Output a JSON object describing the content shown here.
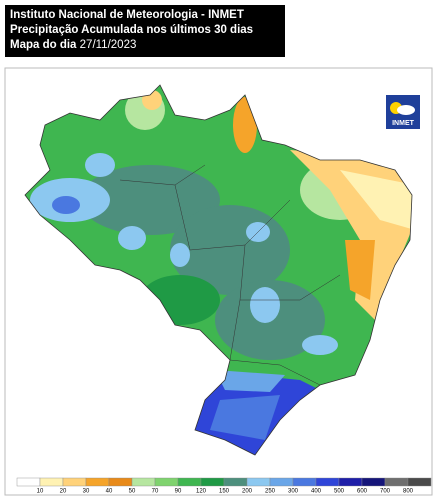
{
  "header": {
    "title": "Instituto Nacional de Meteorologia - INMET",
    "subtitle": "Precipitação Acumulada nos últimos 30 dias",
    "date_label": "Mapa do dia",
    "date": "27/11/2023"
  },
  "logo": {
    "text": "INMET"
  },
  "legend": {
    "ticks": [
      10,
      20,
      30,
      40,
      50,
      70,
      90,
      120,
      150,
      200,
      250,
      300,
      400,
      500,
      600,
      700,
      800
    ],
    "colors": [
      "#ffffff",
      "#fff2b3",
      "#ffd27a",
      "#f5a42a",
      "#e88a1a",
      "#b6e6a0",
      "#7fd36e",
      "#3fb650",
      "#1f9a45",
      "#4d8f7d",
      "#8cc8f0",
      "#6aa6e8",
      "#4a78e0",
      "#2f45d8",
      "#1e1ea8",
      "#15157a",
      "#6e6e6e",
      "#4a4a4a"
    ]
  }
}
